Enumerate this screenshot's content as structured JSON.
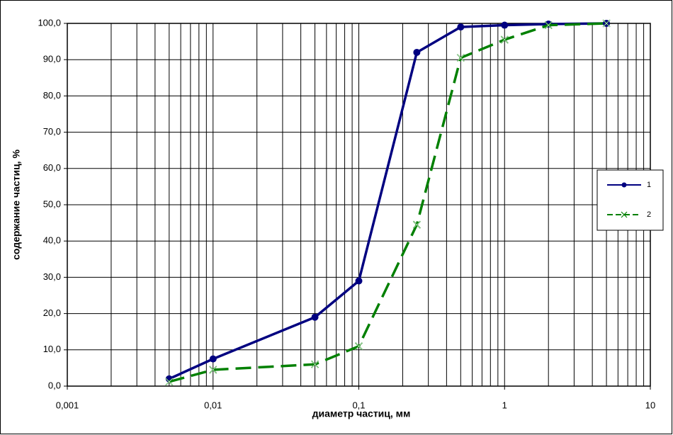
{
  "chart_data": {
    "type": "line",
    "x_label": "диаметр частиц, мм",
    "y_label": "содержание частиц, %",
    "xscale": "log",
    "grid": true,
    "minor_grid": true,
    "legend": "right",
    "xlim": [
      0.001,
      10
    ],
    "xticks": [
      {
        "value": 0.001,
        "label": "0,001"
      },
      {
        "value": 0.01,
        "label": "0,01"
      },
      {
        "value": 0.1,
        "label": "0,1"
      },
      1,
      10
    ],
    "ylim": [
      0,
      100
    ],
    "yticks": [
      {
        "value": 0,
        "label": "0,0"
      },
      {
        "value": 10,
        "label": "10,0"
      },
      {
        "value": 20,
        "label": "20,0"
      },
      {
        "value": 30,
        "label": "30,0"
      },
      {
        "value": 40,
        "label": "40,0"
      },
      {
        "value": 50,
        "label": "50,0"
      },
      {
        "value": 60,
        "label": "60,0"
      },
      {
        "value": 70,
        "label": "70,0"
      },
      {
        "value": 80,
        "label": "80,0"
      },
      {
        "value": 90,
        "label": "90,0"
      },
      {
        "value": 100,
        "label": "100,0"
      }
    ],
    "x": [
      0.005,
      0.01,
      0.05,
      0.1,
      0.25,
      0.5,
      1,
      2,
      5
    ],
    "series": [
      {
        "name": "1",
        "color": "#000080",
        "dash": "solid",
        "marker": "circle",
        "values": [
          2,
          7.5,
          19,
          29,
          92,
          99,
          99.5,
          99.8,
          100
        ]
      },
      {
        "name": "2",
        "color": "#008000",
        "dash": "dashed",
        "marker": "x",
        "values": [
          1.2,
          4.5,
          6,
          11,
          44.5,
          90.5,
          95.5,
          99.5,
          100
        ]
      }
    ]
  }
}
